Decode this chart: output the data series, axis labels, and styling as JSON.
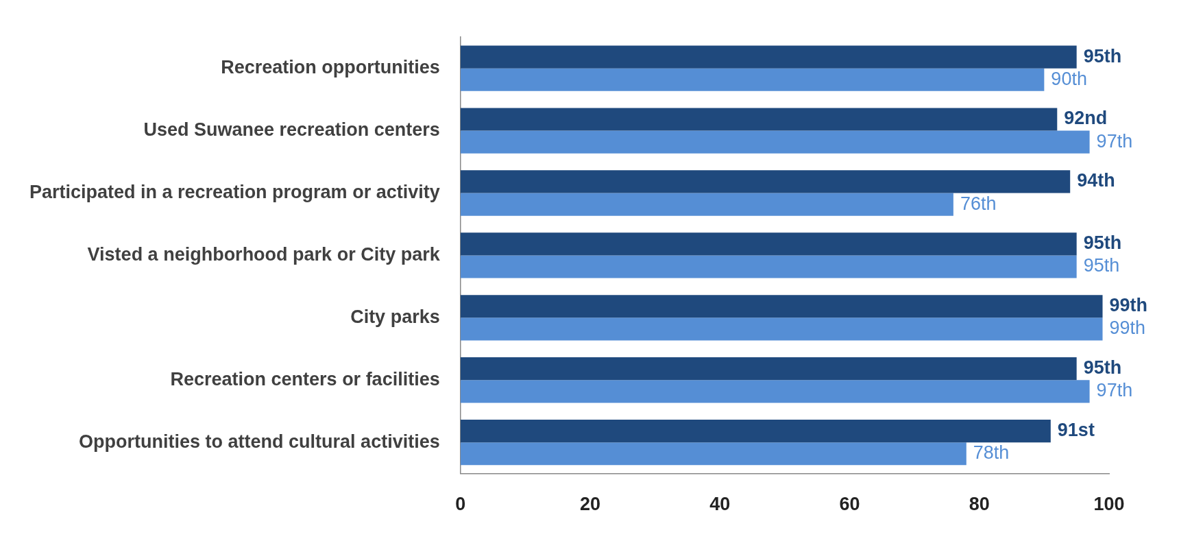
{
  "chart_data": {
    "type": "bar",
    "orientation": "horizontal",
    "categories": [
      "Recreation opportunities",
      "Used Suwanee recreation centers",
      "Participated in a recreation program or activity",
      "Visted a neighborhood park or City park",
      "City parks",
      "Recreation centers or facilities",
      "Opportunities to attend cultural activities"
    ],
    "series": [
      {
        "color": "#1f497d",
        "values": [
          95,
          92,
          94,
          95,
          99,
          95,
          91
        ],
        "value_labels": [
          "95th",
          "92nd",
          "94th",
          "95th",
          "99th",
          "95th",
          "91st"
        ]
      },
      {
        "color": "#558ed5",
        "values": [
          90,
          97,
          76,
          95,
          99,
          97,
          78
        ],
        "value_labels": [
          "90th",
          "97th",
          "76th",
          "95th",
          "99th",
          "97th",
          "78th"
        ]
      }
    ],
    "xlim": [
      0,
      100
    ],
    "xticks": [
      0,
      20,
      40,
      60,
      80,
      100
    ]
  }
}
